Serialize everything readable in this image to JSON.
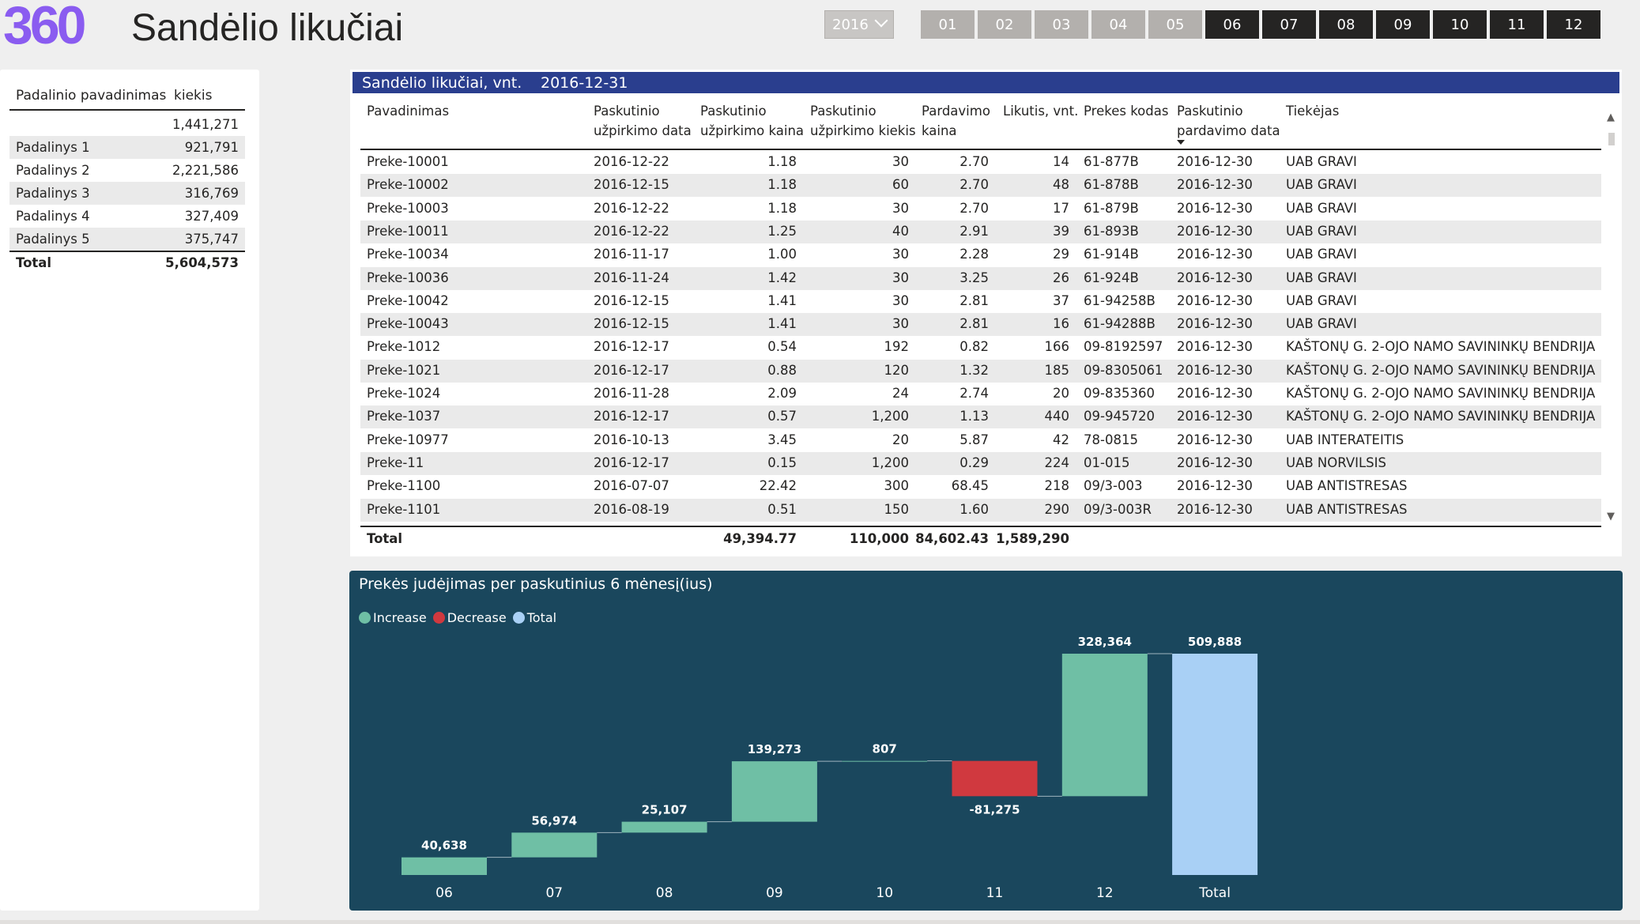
{
  "header": {
    "logo": "360",
    "title": "Sandėlio likučiai",
    "year": "2016",
    "months": [
      {
        "label": "01",
        "active": false
      },
      {
        "label": "02",
        "active": false
      },
      {
        "label": "03",
        "active": false
      },
      {
        "label": "04",
        "active": false
      },
      {
        "label": "05",
        "active": false
      },
      {
        "label": "06",
        "active": true
      },
      {
        "label": "07",
        "active": true
      },
      {
        "label": "08",
        "active": true
      },
      {
        "label": "09",
        "active": true
      },
      {
        "label": "10",
        "active": true
      },
      {
        "label": "11",
        "active": true
      },
      {
        "label": "12",
        "active": true
      }
    ]
  },
  "dept_table": {
    "col_name": "Padalinio pavadinimas",
    "col_qty": "kiekis",
    "rows": [
      {
        "name": "",
        "qty": "1,441,271"
      },
      {
        "name": "Padalinys 1",
        "qty": "921,791"
      },
      {
        "name": "Padalinys 2",
        "qty": "2,221,586"
      },
      {
        "name": "Padalinys 3",
        "qty": "316,769"
      },
      {
        "name": "Padalinys 4",
        "qty": "327,409"
      },
      {
        "name": "Padalinys 5",
        "qty": "375,747"
      }
    ],
    "total_label": "Total",
    "total_qty": "5,604,573"
  },
  "stock_table": {
    "title": "Sandėlio likučiai, vnt.",
    "date": "2016-12-31",
    "columns": [
      [
        "Pavadinimas"
      ],
      [
        "Paskutinio",
        "užpirkimo data"
      ],
      [
        "Paskutinio",
        "užpirkimo kaina"
      ],
      [
        "Paskutinio",
        "užpirkimo kiekis"
      ],
      [
        "Pardavimo",
        "kaina"
      ],
      [
        "Likutis, vnt."
      ],
      [
        "Prekes kodas"
      ],
      [
        "Paskutinio",
        "pardavimo data"
      ],
      [
        "Tiekėjas"
      ]
    ],
    "rows": [
      [
        "Preke-10001",
        "2016-12-22",
        "1.18",
        "30",
        "2.70",
        "14",
        "61-877B",
        "2016-12-30",
        "UAB GRAVI"
      ],
      [
        "Preke-10002",
        "2016-12-15",
        "1.18",
        "60",
        "2.70",
        "48",
        "61-878B",
        "2016-12-30",
        "UAB GRAVI"
      ],
      [
        "Preke-10003",
        "2016-12-22",
        "1.18",
        "30",
        "2.70",
        "17",
        "61-879B",
        "2016-12-30",
        "UAB GRAVI"
      ],
      [
        "Preke-10011",
        "2016-12-22",
        "1.25",
        "40",
        "2.91",
        "39",
        "61-893B",
        "2016-12-30",
        "UAB GRAVI"
      ],
      [
        "Preke-10034",
        "2016-11-17",
        "1.00",
        "30",
        "2.28",
        "29",
        "61-914B",
        "2016-12-30",
        "UAB GRAVI"
      ],
      [
        "Preke-10036",
        "2016-11-24",
        "1.42",
        "30",
        "3.25",
        "26",
        "61-924B",
        "2016-12-30",
        "UAB GRAVI"
      ],
      [
        "Preke-10042",
        "2016-12-15",
        "1.41",
        "30",
        "2.81",
        "37",
        "61-94258B",
        "2016-12-30",
        "UAB GRAVI"
      ],
      [
        "Preke-10043",
        "2016-12-15",
        "1.41",
        "30",
        "2.81",
        "16",
        "61-94288B",
        "2016-12-30",
        "UAB GRAVI"
      ],
      [
        "Preke-1012",
        "2016-12-17",
        "0.54",
        "192",
        "0.82",
        "166",
        "09-8192597",
        "2016-12-30",
        "KAŠTONŲ G. 2-OJO NAMO SAVININKŲ BENDRIJA"
      ],
      [
        "Preke-1021",
        "2016-12-17",
        "0.88",
        "120",
        "1.32",
        "185",
        "09-8305061",
        "2016-12-30",
        "KAŠTONŲ G. 2-OJO NAMO SAVININKŲ BENDRIJA"
      ],
      [
        "Preke-1024",
        "2016-11-28",
        "2.09",
        "24",
        "2.74",
        "20",
        "09-835360",
        "2016-12-30",
        "KAŠTONŲ G. 2-OJO NAMO SAVININKŲ BENDRIJA"
      ],
      [
        "Preke-1037",
        "2016-12-17",
        "0.57",
        "1,200",
        "1.13",
        "440",
        "09-945720",
        "2016-12-30",
        "KAŠTONŲ G. 2-OJO NAMO SAVININKŲ BENDRIJA"
      ],
      [
        "Preke-10977",
        "2016-10-13",
        "3.45",
        "20",
        "5.87",
        "42",
        "78-0815",
        "2016-12-30",
        "UAB INTERATEITIS"
      ],
      [
        "Preke-11",
        "2016-12-17",
        "0.15",
        "1,200",
        "0.29",
        "224",
        "01-015",
        "2016-12-30",
        "UAB NORVILSIS"
      ],
      [
        "Preke-1100",
        "2016-07-07",
        "22.42",
        "300",
        "68.45",
        "218",
        "09/3-003",
        "2016-12-30",
        "UAB ANTISTRESAS"
      ],
      [
        "Preke-1101",
        "2016-08-19",
        "0.51",
        "150",
        "1.60",
        "290",
        "09/3-003R",
        "2016-12-30",
        "UAB ANTISTRESAS"
      ]
    ],
    "totals": [
      "Total",
      "",
      "49,394.77",
      "110,000",
      "84,602.43",
      "1,589,290",
      "",
      "",
      ""
    ]
  },
  "chart_data": {
    "type": "bar",
    "subtype": "waterfall",
    "title": "Prekės judėjimas per paskutinius 6 mėnesį(ius)",
    "legend": [
      {
        "name": "Increase",
        "color": "#6fbfa5"
      },
      {
        "name": "Decrease",
        "color": "#d0393f"
      },
      {
        "name": "Total",
        "color": "#a9d0f5"
      }
    ],
    "categories": [
      "06",
      "07",
      "08",
      "09",
      "10",
      "11",
      "12",
      "Total"
    ],
    "values": [
      40638,
      56974,
      25107,
      139273,
      807,
      -81275,
      328364,
      509888
    ],
    "labels": [
      "40,638",
      "56,974",
      "25,107",
      "139,273",
      "807",
      "-81,275",
      "328,364",
      "509,888"
    ],
    "colors": {
      "increase": "#6fbfa5",
      "decrease": "#d0393f",
      "total": "#a9d0f5",
      "background": "#1a475d"
    }
  }
}
